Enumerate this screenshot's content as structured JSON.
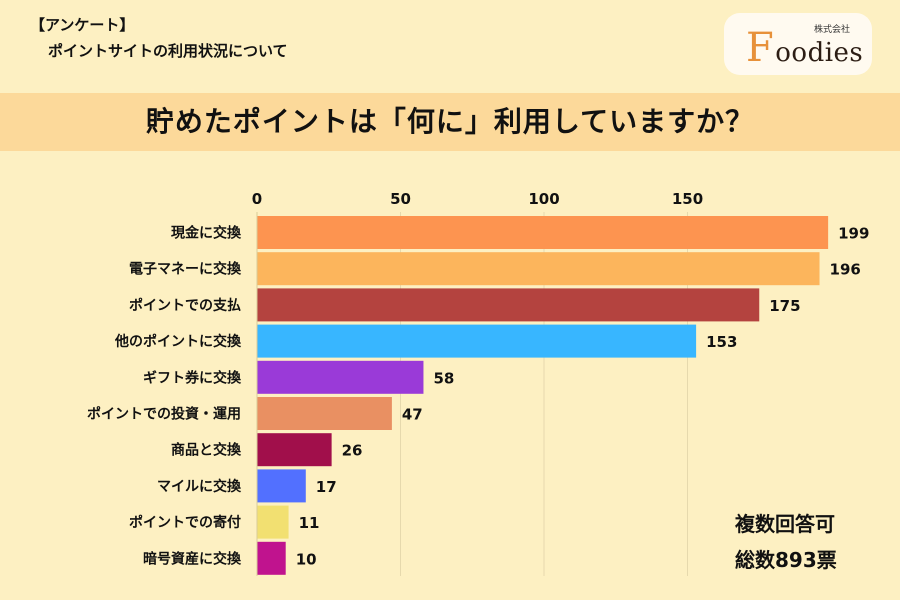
{
  "header": {
    "survey_label": "【アンケート】",
    "survey_subtitle": "ポイントサイトの利用状況について"
  },
  "logo": {
    "brand_initial": "F",
    "brand_rest": "oodies",
    "corp_label": "株式会社"
  },
  "question": "貯めたポイントは「何に」利用していますか？",
  "notes": {
    "multiple_answers": "複数回答可",
    "total_votes": "総数893票"
  },
  "chart_data": {
    "type": "bar",
    "orientation": "horizontal",
    "title": "貯めたポイントは「何に」利用していますか？",
    "xlim": [
      0,
      200
    ],
    "xticks": [
      0,
      50,
      100,
      150
    ],
    "grid": true,
    "categories": [
      "現金に交換",
      "電子マネーに交換",
      "ポイントでの支払",
      "他のポイントに交換",
      "ギフト券に交換",
      "ポイントでの投資・運用",
      "商品と交換",
      "マイルに交換",
      "ポイントでの寄付",
      "暗号資産に交換"
    ],
    "values": [
      199,
      196,
      175,
      153,
      58,
      47,
      26,
      17,
      11,
      10
    ],
    "colors": [
      "#fd9450",
      "#fcb55c",
      "#b4433f",
      "#38b6ff",
      "#9a3ad8",
      "#e99062",
      "#a10f4b",
      "#5270ff",
      "#f2e071",
      "#c0138e"
    ]
  }
}
